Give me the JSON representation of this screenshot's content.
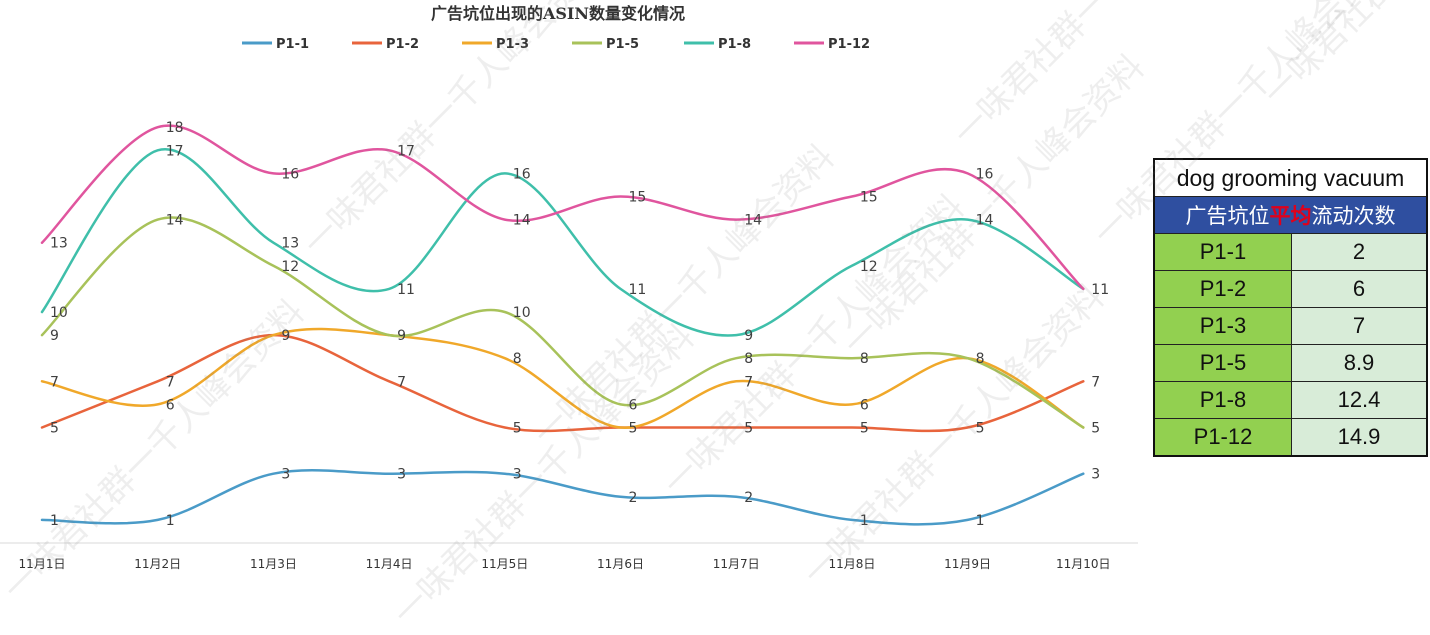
{
  "chart_data": {
    "type": "line",
    "title": "广告坑位出现的ASIN数量变化情况",
    "categories": [
      "11月1日",
      "11月2日",
      "11月3日",
      "11月4日",
      "11月5日",
      "11月6日",
      "11月7日",
      "11月8日",
      "11月9日",
      "11月10日"
    ],
    "legend_position": "top",
    "ylim": [
      0,
      19
    ],
    "series": [
      {
        "name": "P1-1",
        "color": "#4a9bc8",
        "values": [
          1,
          1,
          3,
          3,
          3,
          2,
          2,
          1,
          1,
          3
        ]
      },
      {
        "name": "P1-2",
        "color": "#e8643c",
        "values": [
          5,
          7,
          9,
          7,
          5,
          5,
          5,
          5,
          5,
          7
        ]
      },
      {
        "name": "P1-3",
        "color": "#f0a82a",
        "values": [
          7,
          6,
          9,
          9,
          8,
          5,
          7,
          6,
          8,
          5
        ]
      },
      {
        "name": "P1-5",
        "color": "#a8c25a",
        "values": [
          9,
          14,
          12,
          9,
          10,
          6,
          8,
          8,
          8,
          5
        ]
      },
      {
        "name": "P1-8",
        "color": "#3fbfaa",
        "values": [
          10,
          17,
          13,
          11,
          16,
          11,
          9,
          12,
          14,
          11
        ]
      },
      {
        "name": "P1-12",
        "color": "#e0559e",
        "values": [
          13,
          18,
          16,
          17,
          14,
          15,
          14,
          15,
          16,
          11
        ]
      }
    ],
    "data_labels": [
      {
        "cat": 0,
        "text": "13",
        "y": 13
      },
      {
        "cat": 0,
        "text": "10",
        "y": 10
      },
      {
        "cat": 0,
        "text": "9",
        "y": 9
      },
      {
        "cat": 0,
        "text": "7",
        "y": 7
      },
      {
        "cat": 0,
        "text": "5",
        "y": 5
      },
      {
        "cat": 0,
        "text": "1",
        "y": 1
      },
      {
        "cat": 1,
        "text": "18",
        "y": 18
      },
      {
        "cat": 1,
        "text": "17",
        "y": 17
      },
      {
        "cat": 1,
        "text": "14",
        "y": 14
      },
      {
        "cat": 1,
        "text": "7",
        "y": 7
      },
      {
        "cat": 1,
        "text": "6",
        "y": 6
      },
      {
        "cat": 1,
        "text": "1",
        "y": 1
      },
      {
        "cat": 2,
        "text": "16",
        "y": 16
      },
      {
        "cat": 2,
        "text": "13",
        "y": 13
      },
      {
        "cat": 2,
        "text": "12",
        "y": 12
      },
      {
        "cat": 2,
        "text": "9",
        "y": 9
      },
      {
        "cat": 2,
        "text": "3",
        "y": 3
      },
      {
        "cat": 3,
        "text": "17",
        "y": 17
      },
      {
        "cat": 3,
        "text": "11",
        "y": 11
      },
      {
        "cat": 3,
        "text": "9",
        "y": 9
      },
      {
        "cat": 3,
        "text": "7",
        "y": 7
      },
      {
        "cat": 3,
        "text": "3",
        "y": 3
      },
      {
        "cat": 4,
        "text": "16",
        "y": 16
      },
      {
        "cat": 4,
        "text": "14",
        "y": 14
      },
      {
        "cat": 4,
        "text": "10",
        "y": 10
      },
      {
        "cat": 4,
        "text": "8",
        "y": 8
      },
      {
        "cat": 4,
        "text": "5",
        "y": 5
      },
      {
        "cat": 4,
        "text": "3",
        "y": 3
      },
      {
        "cat": 5,
        "text": "15",
        "y": 15
      },
      {
        "cat": 5,
        "text": "11",
        "y": 11
      },
      {
        "cat": 5,
        "text": "6",
        "y": 6
      },
      {
        "cat": 5,
        "text": "5",
        "y": 5
      },
      {
        "cat": 5,
        "text": "2",
        "y": 2
      },
      {
        "cat": 6,
        "text": "14",
        "y": 14
      },
      {
        "cat": 6,
        "text": "9",
        "y": 9
      },
      {
        "cat": 6,
        "text": "8",
        "y": 8
      },
      {
        "cat": 6,
        "text": "7",
        "y": 7
      },
      {
        "cat": 6,
        "text": "5",
        "y": 5
      },
      {
        "cat": 6,
        "text": "2",
        "y": 2
      },
      {
        "cat": 7,
        "text": "15",
        "y": 15
      },
      {
        "cat": 7,
        "text": "12",
        "y": 12
      },
      {
        "cat": 7,
        "text": "8",
        "y": 8
      },
      {
        "cat": 7,
        "text": "6",
        "y": 6
      },
      {
        "cat": 7,
        "text": "5",
        "y": 5
      },
      {
        "cat": 7,
        "text": "1",
        "y": 1
      },
      {
        "cat": 8,
        "text": "16",
        "y": 16
      },
      {
        "cat": 8,
        "text": "14",
        "y": 14
      },
      {
        "cat": 8,
        "text": "8",
        "y": 8
      },
      {
        "cat": 8,
        "text": "5",
        "y": 5
      },
      {
        "cat": 8,
        "text": "1",
        "y": 1
      },
      {
        "cat": 9,
        "text": "11",
        "y": 11
      },
      {
        "cat": 9,
        "text": "7",
        "y": 7
      },
      {
        "cat": 9,
        "text": "5",
        "y": 5
      },
      {
        "cat": 9,
        "text": "3",
        "y": 3
      }
    ]
  },
  "table": {
    "title": "dog grooming vacuum",
    "subtitle_before": "广告坑位",
    "subtitle_highlight": "平均",
    "subtitle_after": "流动次数",
    "rows": [
      {
        "name": "P1-1",
        "value": "2"
      },
      {
        "name": "P1-2",
        "value": "6"
      },
      {
        "name": "P1-3",
        "value": "7"
      },
      {
        "name": "P1-5",
        "value": "8.9"
      },
      {
        "name": "P1-8",
        "value": "12.4"
      },
      {
        "name": "P1-12",
        "value": "14.9"
      }
    ]
  },
  "watermark_text": "一味君社群一千人峰会资料"
}
